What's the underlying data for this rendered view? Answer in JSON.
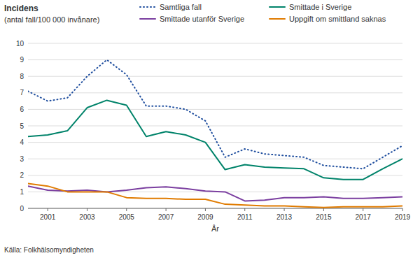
{
  "chart_data": {
    "type": "line",
    "ylabel": [
      "Incidens",
      "(antal fall/100 000 invånare)"
    ],
    "xlabel": "År",
    "annotations": [
      "Källa: Folkhälsomyndigheten"
    ],
    "x": [
      2000,
      2001,
      2002,
      2003,
      2004,
      2005,
      2006,
      2007,
      2008,
      2009,
      2010,
      2011,
      2012,
      2013,
      2014,
      2015,
      2016,
      2017,
      2018,
      2019
    ],
    "series": [
      {
        "name": "Samtliga fall",
        "color": "#1f4e9e",
        "line_style": "dotted",
        "values": [
          7.1,
          6.5,
          6.7,
          8.0,
          9.0,
          8.1,
          6.2,
          6.2,
          6.0,
          5.3,
          3.1,
          3.6,
          3.3,
          3.2,
          3.1,
          2.6,
          2.5,
          2.4,
          3.1,
          3.8
        ]
      },
      {
        "name": "Smittade i Sverige",
        "color": "#00836a",
        "line_style": "solid",
        "values": [
          4.35,
          4.45,
          4.7,
          6.1,
          6.55,
          6.25,
          4.35,
          4.65,
          4.45,
          4.0,
          2.35,
          2.65,
          2.5,
          2.45,
          2.4,
          1.85,
          1.75,
          1.75,
          2.4,
          3.0
        ]
      },
      {
        "name": "Smittade utanför Sverige",
        "color": "#7b3fa0",
        "line_style": "solid",
        "values": [
          1.35,
          1.1,
          1.05,
          1.1,
          1.0,
          1.1,
          1.25,
          1.3,
          1.2,
          1.05,
          1.0,
          0.45,
          0.5,
          0.65,
          0.65,
          0.7,
          0.6,
          0.6,
          0.65,
          0.7
        ]
      },
      {
        "name": "Uppgift om smittland saknas",
        "color": "#e07b00",
        "line_style": "solid",
        "values": [
          1.5,
          1.35,
          1.0,
          1.0,
          1.0,
          0.65,
          0.6,
          0.6,
          0.55,
          0.55,
          0.25,
          0.2,
          0.15,
          0.15,
          0.1,
          0.05,
          0.1,
          0.1,
          0.1,
          0.15
        ]
      }
    ],
    "xlim": [
      2000,
      2019
    ],
    "xticks": [
      2001,
      2003,
      2005,
      2007,
      2009,
      2011,
      2013,
      2015,
      2017,
      2019
    ],
    "ylim": [
      0,
      10
    ],
    "yticks": [
      0,
      1,
      2,
      3,
      4,
      5,
      6,
      7,
      8,
      9,
      10
    ],
    "grid": true,
    "legend": "top"
  }
}
